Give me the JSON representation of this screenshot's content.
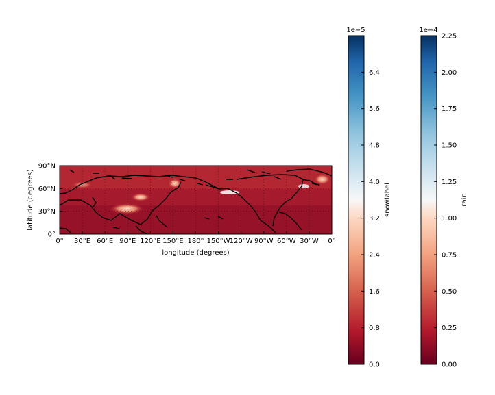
{
  "map": {
    "xlabel": "longitude (degrees)",
    "ylabel": "latitude (degrees)",
    "lon_ticks": [
      "0°",
      "30°E",
      "60°E",
      "90°E",
      "120°E",
      "150°E",
      "180°",
      "150°W",
      "120°W",
      "90°W",
      "60°W",
      "30°W",
      "0°"
    ],
    "lat_ticks": [
      "0°",
      "30°N",
      "60°N",
      "90°N"
    ],
    "extent": {
      "lon": [
        0,
        360
      ],
      "lat": [
        0,
        90
      ]
    },
    "background_color": "#b2182b",
    "coastline_color": "#000000"
  },
  "colorbars": [
    {
      "label": "snowlabel",
      "offset": "1e−5",
      "ticks": [
        "0.0",
        "0.8",
        "1.6",
        "2.4",
        "3.2",
        "4.0",
        "4.8",
        "5.6",
        "6.4"
      ],
      "range": [
        0,
        7.2
      ],
      "colormap": "RdBu"
    },
    {
      "label": "rain",
      "offset": "1e−4",
      "ticks": [
        "0.00",
        "0.25",
        "0.50",
        "0.75",
        "1.00",
        "1.25",
        "1.50",
        "1.75",
        "2.00",
        "2.25"
      ],
      "range": [
        0,
        2.25
      ],
      "colormap": "RdBu"
    }
  ]
}
